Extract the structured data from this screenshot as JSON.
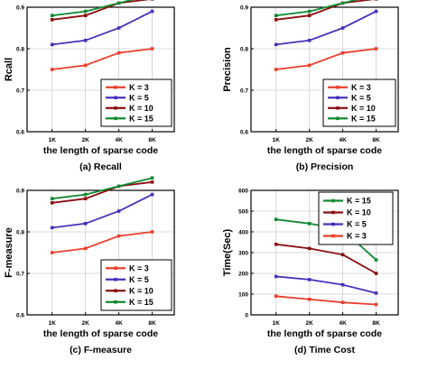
{
  "colors": {
    "K3": "#e8402e",
    "K5": "#4433bb",
    "K10": "#8a1010",
    "K15": "#118a33"
  },
  "chart_data": [
    {
      "type": "line",
      "caption": "(a) Recall",
      "xlabel": "the length of sparse code",
      "ylabel": "Rcall",
      "categories": [
        "1K",
        "2K",
        "4K",
        "8K"
      ],
      "ylim": [
        0.6,
        0.9
      ],
      "yticks": [
        "0.6",
        "0.7",
        "0.8",
        "0.9"
      ],
      "legend_position": "bottom-right",
      "series": [
        {
          "name": "K =  3",
          "color": "#e8402e",
          "values": [
            0.75,
            0.76,
            0.79,
            0.8
          ]
        },
        {
          "name": "K =  5",
          "color": "#4433bb",
          "values": [
            0.81,
            0.82,
            0.85,
            0.89
          ]
        },
        {
          "name": "K = 10",
          "color": "#8a1010",
          "values": [
            0.87,
            0.88,
            0.91,
            0.92
          ]
        },
        {
          "name": "K = 15",
          "color": "#118a33",
          "values": [
            0.88,
            0.89,
            0.91,
            0.93
          ]
        }
      ]
    },
    {
      "type": "line",
      "caption": "(b) Precision",
      "xlabel": "the length of sparse code",
      "ylabel": "Precision",
      "categories": [
        "1K",
        "2K",
        "4K",
        "8K"
      ],
      "ylim": [
        0.6,
        0.9
      ],
      "yticks": [
        "0.6",
        "0.7",
        "0.8",
        "0.9"
      ],
      "legend_position": "bottom-right",
      "series": [
        {
          "name": "K =  3",
          "color": "#e8402e",
          "values": [
            0.75,
            0.76,
            0.79,
            0.8
          ]
        },
        {
          "name": "K =  5",
          "color": "#4433bb",
          "values": [
            0.81,
            0.82,
            0.85,
            0.89
          ]
        },
        {
          "name": "K = 10",
          "color": "#8a1010",
          "values": [
            0.87,
            0.88,
            0.91,
            0.92
          ]
        },
        {
          "name": "K = 15",
          "color": "#118a33",
          "values": [
            0.88,
            0.89,
            0.91,
            0.93
          ]
        }
      ]
    },
    {
      "type": "line",
      "caption": "(c) F-measure",
      "xlabel": "the length of sparse code",
      "ylabel": "F-measure",
      "categories": [
        "1K",
        "2K",
        "4K",
        "8K"
      ],
      "ylim": [
        0.6,
        0.9
      ],
      "yticks": [
        "0.6",
        "0.7",
        "0.8",
        "0.9"
      ],
      "legend_position": "bottom-right",
      "series": [
        {
          "name": "K =  3",
          "color": "#e8402e",
          "values": [
            0.75,
            0.76,
            0.79,
            0.8
          ]
        },
        {
          "name": "K =  5",
          "color": "#4433bb",
          "values": [
            0.81,
            0.82,
            0.85,
            0.89
          ]
        },
        {
          "name": "K = 10",
          "color": "#8a1010",
          "values": [
            0.87,
            0.88,
            0.91,
            0.92
          ]
        },
        {
          "name": "K = 15",
          "color": "#118a33",
          "values": [
            0.88,
            0.89,
            0.91,
            0.93
          ]
        }
      ]
    },
    {
      "type": "line",
      "caption": "(d) Time Cost",
      "xlabel": "the length of sparse code",
      "ylabel": "Time(Sec)",
      "categories": [
        "1K",
        "2K",
        "4K",
        "8K"
      ],
      "ylim": [
        0,
        600
      ],
      "yticks": [
        "0",
        "100",
        "200",
        "300",
        "400",
        "500",
        "600"
      ],
      "legend_position": "top-right",
      "series": [
        {
          "name": "K = 15",
          "color": "#118a33",
          "values": [
            460,
            440,
            410,
            265
          ]
        },
        {
          "name": "K = 10",
          "color": "#8a1010",
          "values": [
            340,
            320,
            290,
            200
          ]
        },
        {
          "name": "K =  5",
          "color": "#4433bb",
          "values": [
            185,
            170,
            145,
            105
          ]
        },
        {
          "name": "K =  3",
          "color": "#e8402e",
          "values": [
            90,
            75,
            60,
            50
          ]
        }
      ]
    }
  ]
}
